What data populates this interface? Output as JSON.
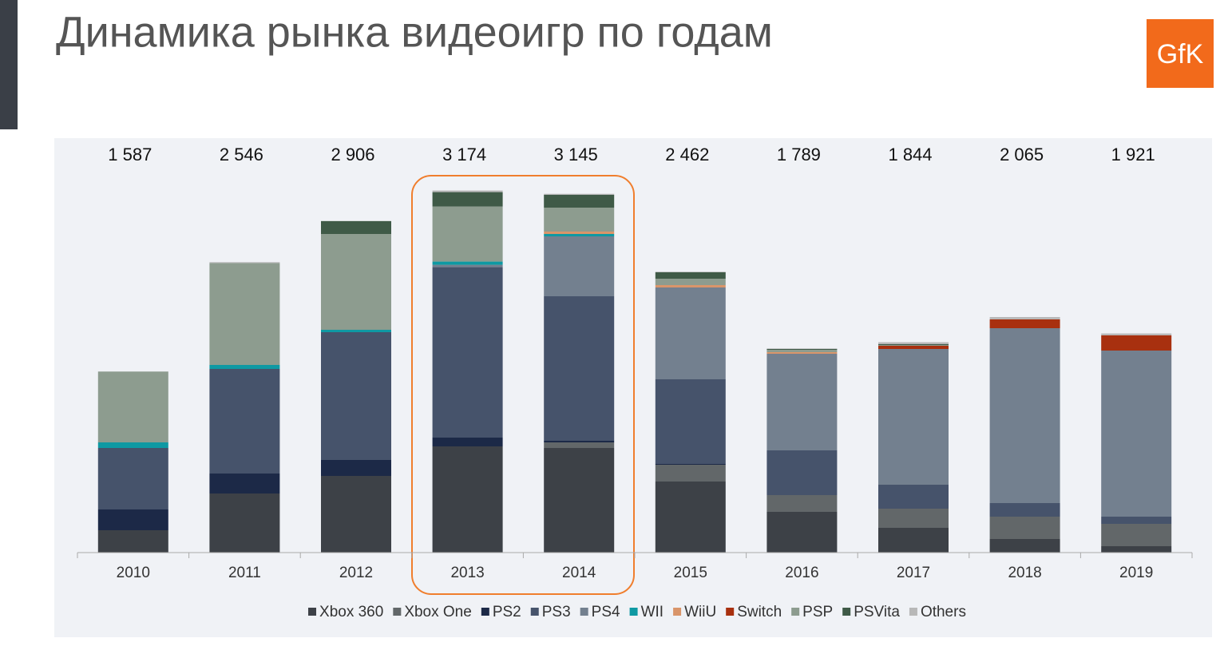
{
  "title": "Динамика рынка видеоигр по годам",
  "logo": "GfK",
  "chart_data": {
    "type": "stacked-bar",
    "categories": [
      "2010",
      "2011",
      "2012",
      "2013",
      "2014",
      "2015",
      "2016",
      "2017",
      "2018",
      "2019"
    ],
    "totals": [
      {
        "value": 1587,
        "label": "1 587"
      },
      {
        "value": 2546,
        "label": "2 546"
      },
      {
        "value": 2906,
        "label": "2 906"
      },
      {
        "value": 3174,
        "label": "3 174"
      },
      {
        "value": 3145,
        "label": "3 145"
      },
      {
        "value": 2462,
        "label": "2 462"
      },
      {
        "value": 1789,
        "label": "1 789"
      },
      {
        "value": 1844,
        "label": "1 844"
      },
      {
        "value": 2065,
        "label": "2 065"
      },
      {
        "value": 1921,
        "label": "1 921"
      }
    ],
    "ylim": [
      0,
      3500
    ],
    "series": [
      {
        "name": "Xbox 360",
        "color": "#3d4147",
        "values": [
          196,
          518,
          672,
          931,
          917,
          623,
          357,
          217,
          119,
          56
        ]
      },
      {
        "name": "Xbox One",
        "color": "#626769",
        "values": [
          0,
          0,
          0,
          0,
          49,
          147,
          147,
          168,
          196,
          196
        ]
      },
      {
        "name": "PS2",
        "color": "#1c2947",
        "values": [
          182,
          175,
          140,
          77,
          14,
          7,
          0,
          0,
          0,
          0
        ]
      },
      {
        "name": "PS3",
        "color": "#46536b",
        "values": [
          539,
          917,
          1120,
          1494,
          1267,
          742,
          392,
          210,
          119,
          63
        ]
      },
      {
        "name": "PS4",
        "color": "#73808f",
        "values": [
          0,
          0,
          0,
          21,
          525,
          805,
          847,
          1190,
          1533,
          1456
        ]
      },
      {
        "name": "WII",
        "color": "#0f99a3",
        "values": [
          49,
          35,
          21,
          28,
          21,
          0,
          0,
          0,
          0,
          0
        ]
      },
      {
        "name": "WiiU",
        "color": "#d9956a",
        "values": [
          0,
          0,
          0,
          0,
          21,
          21,
          14,
          0,
          0,
          0
        ]
      },
      {
        "name": "Switch",
        "color": "#a8300f",
        "values": [
          0,
          0,
          0,
          0,
          0,
          0,
          0,
          28,
          77,
          133
        ]
      },
      {
        "name": "PSP",
        "color": "#8d9c8f",
        "values": [
          621,
          894,
          840,
          483,
          210,
          56,
          21,
          7,
          0,
          0
        ]
      },
      {
        "name": "PSVita",
        "color": "#3f5a47",
        "values": [
          0,
          0,
          113,
          126,
          112,
          56,
          7,
          7,
          0,
          0
        ]
      },
      {
        "name": "Others",
        "color": "#b8b8b8",
        "values": [
          0,
          7,
          0,
          14,
          9,
          5,
          4,
          17,
          21,
          17
        ]
      }
    ]
  }
}
